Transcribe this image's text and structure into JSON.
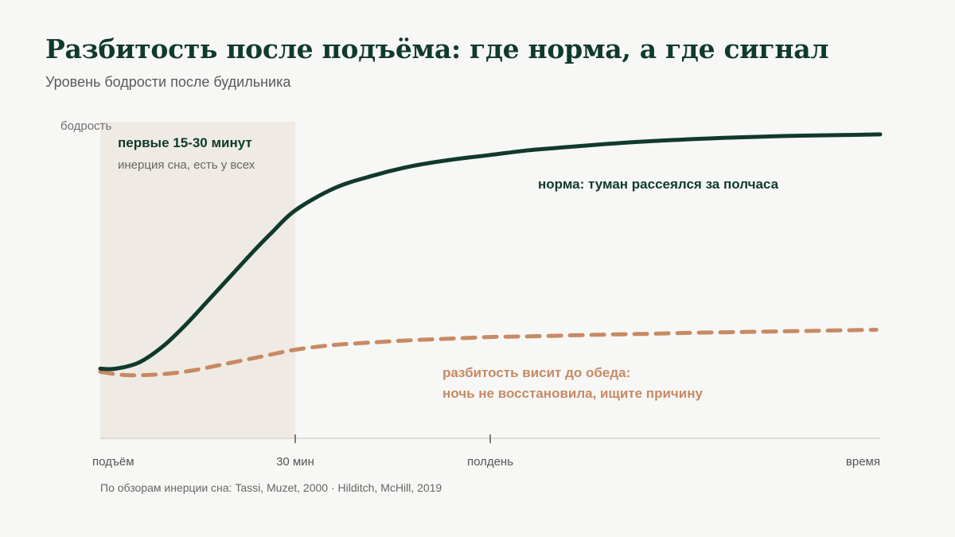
{
  "title": "Разбитость после подъёма: где норма, а где сигнал",
  "subtitle": "Уровень бодрости после будильника",
  "source": "По обзорам инерции сна: Tassi, Muzet, 2000 · Hilditch, McHill, 2019",
  "colors": {
    "background": "#f7f7f5",
    "norm": "#0f3a2c",
    "fatigue": "#c78a63",
    "zone": "#efebe4",
    "axis": "#d8d4cc"
  },
  "chart_data": {
    "type": "line",
    "ylabel": "бодрость",
    "xlabel": "время",
    "x_ticks": [
      {
        "x": 0,
        "label": "подъём",
        "tick_mark": false
      },
      {
        "x": 0.25,
        "label": "30 мин",
        "tick_mark": true
      },
      {
        "x": 0.5,
        "label": "полдень",
        "tick_mark": true
      },
      {
        "x": 1.0,
        "label": "время",
        "tick_mark": false
      }
    ],
    "xlim": [
      0,
      1
    ],
    "ylim": [
      0,
      1
    ],
    "shaded_region": {
      "x_range": [
        0,
        0.25
      ],
      "title": "первые 15-30 минут",
      "subtitle": "инерция сна, есть у всех"
    },
    "series": [
      {
        "key": "norm",
        "style": "solid",
        "x": [
          0,
          0.02,
          0.05,
          0.08,
          0.11,
          0.14,
          0.17,
          0.2,
          0.22,
          0.25,
          0.3,
          0.35,
          0.4,
          0.45,
          0.5,
          0.55,
          0.6,
          0.65,
          0.7,
          0.75,
          0.8,
          0.85,
          0.9,
          0.95,
          1.0
        ],
        "y": [
          0.22,
          0.22,
          0.24,
          0.29,
          0.36,
          0.44,
          0.52,
          0.6,
          0.65,
          0.72,
          0.79,
          0.83,
          0.86,
          0.88,
          0.895,
          0.91,
          0.92,
          0.93,
          0.938,
          0.944,
          0.949,
          0.953,
          0.956,
          0.958,
          0.96
        ]
      },
      {
        "key": "fatigue",
        "style": "dashed",
        "x": [
          0,
          0.03,
          0.06,
          0.09,
          0.12,
          0.15,
          0.18,
          0.21,
          0.25,
          0.3,
          0.35,
          0.4,
          0.45,
          0.5,
          0.55,
          0.6,
          0.65,
          0.7,
          0.75,
          0.8,
          0.85,
          0.9,
          0.95,
          0.995
        ],
        "y": [
          0.21,
          0.2,
          0.2,
          0.205,
          0.215,
          0.23,
          0.245,
          0.26,
          0.28,
          0.295,
          0.303,
          0.31,
          0.315,
          0.32,
          0.322,
          0.325,
          0.328,
          0.33,
          0.333,
          0.335,
          0.337,
          0.339,
          0.341,
          0.343
        ]
      }
    ],
    "annotations": [
      {
        "series": "norm",
        "lines": [
          "норма: туман рассеялся за полчаса"
        ]
      },
      {
        "series": "fatigue",
        "lines": [
          "разбитость висит до обеда:",
          "ночь не восстановила, ищите причину"
        ]
      }
    ]
  }
}
